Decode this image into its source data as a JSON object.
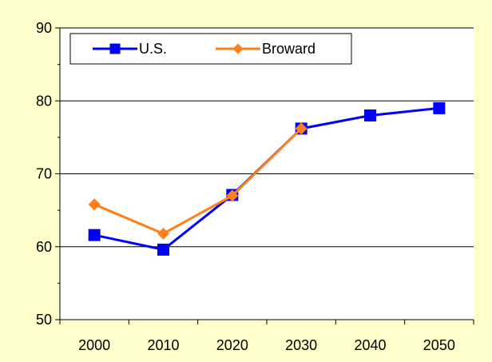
{
  "chart_data": {
    "type": "line",
    "title": "",
    "xlabel": "",
    "ylabel": "",
    "x": [
      "2000",
      "2010",
      "2020",
      "2030",
      "2040",
      "2050"
    ],
    "ylim": [
      50,
      90
    ],
    "yticks": [
      50,
      60,
      70,
      80,
      90
    ],
    "grid": "horizontal",
    "legend_position": "top-left",
    "series": [
      {
        "name": "U.S.",
        "color": "#0000ff",
        "marker": "square",
        "values": [
          61.6,
          59.6,
          67.1,
          76.2,
          78.0,
          79.0
        ]
      },
      {
        "name": "Broward",
        "color": "#ff7f1a",
        "marker": "diamond",
        "values": [
          65.8,
          61.8,
          67.0,
          76.2,
          null,
          null
        ]
      }
    ]
  },
  "colors": {
    "background": "#ffffcc",
    "plot_area": "#ffffff",
    "gridline": "#000000"
  }
}
